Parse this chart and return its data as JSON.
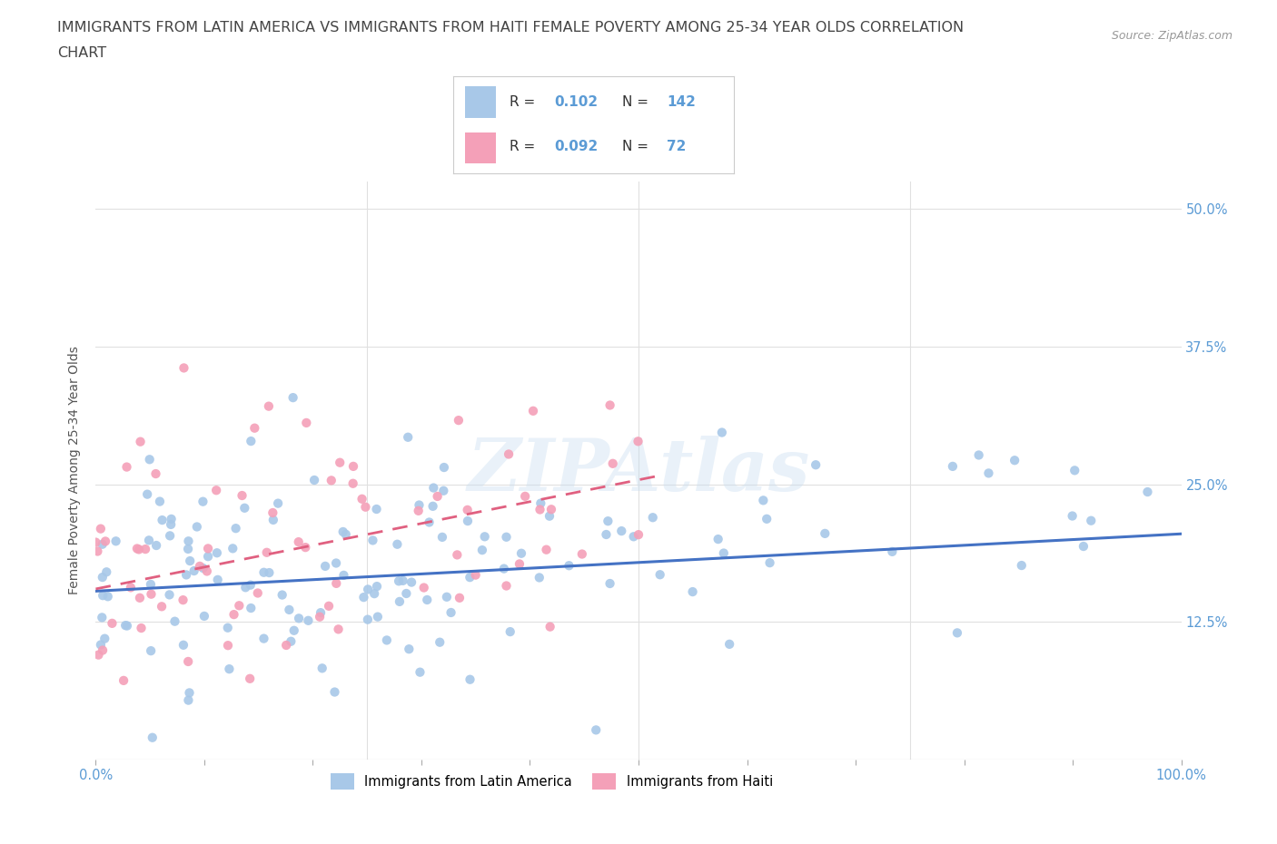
{
  "title_line1": "IMMIGRANTS FROM LATIN AMERICA VS IMMIGRANTS FROM HAITI FEMALE POVERTY AMONG 25-34 YEAR OLDS CORRELATION",
  "title_line2": "CHART",
  "source_text": "Source: ZipAtlas.com",
  "ylabel": "Female Poverty Among 25-34 Year Olds",
  "xlim": [
    0.0,
    1.0
  ],
  "ylim": [
    0.0,
    0.525
  ],
  "ytick_values": [
    0.125,
    0.25,
    0.375,
    0.5
  ],
  "xtick_values": [
    0.0,
    0.1,
    0.2,
    0.3,
    0.4,
    0.5,
    0.6,
    0.7,
    0.8,
    0.9,
    1.0
  ],
  "watermark": "ZIPAtlas",
  "r_latin": 0.102,
  "n_latin": 142,
  "r_haiti": 0.092,
  "n_haiti": 72,
  "scatter_color_latin": "#a8c8e8",
  "scatter_color_haiti": "#f4a0b8",
  "line_color_latin": "#4472c4",
  "line_color_haiti": "#e06080",
  "background_color": "#ffffff",
  "grid_color": "#e0e0e0",
  "title_color": "#444444",
  "axis_label_color": "#555555",
  "tick_color": "#5b9bd5",
  "legend_label_latin": "Immigrants from Latin America",
  "legend_label_haiti": "Immigrants from Haiti",
  "legend_color_latin": "#a8c8e8",
  "legend_color_haiti": "#f4a0b8"
}
